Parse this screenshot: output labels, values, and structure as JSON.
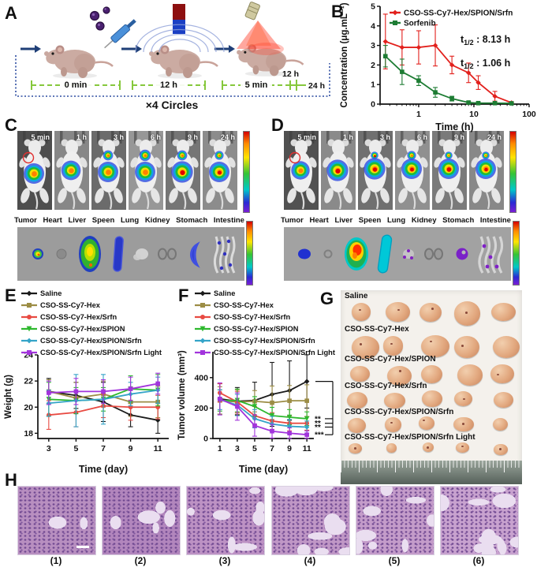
{
  "panels": {
    "A": {
      "label": "A",
      "timeline_segments": [
        "0 min",
        "12 h",
        "5 min"
      ],
      "tail_time_upper": "12 h",
      "tail_time_end": "24 h",
      "cycle_label": "×4 Circles",
      "step_icons": [
        "nanoparticle-injection",
        "magnet-field",
        "nir-light"
      ]
    },
    "B": {
      "label": "B"
    },
    "C": {
      "label": "C",
      "time_labels": [
        "5 min",
        "1 h",
        "3 h",
        "6 h",
        "9 h",
        "24 h"
      ],
      "organ_labels": [
        "Tumor",
        "Heart",
        "Liver",
        "Speen",
        "Lung",
        "Kidney",
        "Stomach",
        "Intestine"
      ]
    },
    "D": {
      "label": "D",
      "time_labels": [
        "5 min",
        "1 h",
        "3 h",
        "6 h",
        "9 h",
        "24 h"
      ],
      "organ_labels": [
        "Tumor",
        "Heart",
        "Liver",
        "Speen",
        "Lung",
        "Kidney",
        "Stomach",
        "Intestine"
      ]
    },
    "E": {
      "label": "E"
    },
    "F": {
      "label": "F"
    },
    "G": {
      "label": "G",
      "group_labels": [
        "Saline",
        "CSO-SS-Cy7-Hex",
        "CSO-SS-Cy7-Hex/SPION",
        "CSO-SS-Cy7-Hex/Srfn",
        "CSO-SS-Cy7-Hex/SPION/Srfn",
        "CSO-SS-Cy7-Hex/SPION/Srfn Light"
      ],
      "tumors_per_row": 5
    },
    "H": {
      "label": "H",
      "captions": [
        "(1)",
        "(2)",
        "(3)",
        "(4)",
        "(5)",
        "(6)"
      ]
    }
  },
  "chart_data": [
    {
      "panel": "B",
      "type": "line",
      "xscale": "log",
      "xlabel": "Time (h)",
      "ylabel": "Concentration (μg.mL⁻¹)",
      "xlim": [
        0.2,
        100
      ],
      "ylim": [
        0,
        5
      ],
      "xticks": [
        1,
        10,
        100
      ],
      "yticks": [
        0,
        1,
        2,
        3,
        4,
        5
      ],
      "legend_position": "inside-top-left",
      "x": [
        0.25,
        0.5,
        1,
        2,
        4,
        8,
        12,
        24,
        48
      ],
      "series": [
        {
          "name": "CSO-SS-Cy7-Hex/SPION/Srfn",
          "color": "#e2201c",
          "values": [
            3.2,
            2.9,
            2.9,
            3.0,
            2.0,
            1.6,
            1.1,
            0.4,
            0.07
          ],
          "errors": [
            1.4,
            0.9,
            0.85,
            1.05,
            0.45,
            0.5,
            0.35,
            0.25,
            0.05
          ]
        },
        {
          "name": "Sorfenib",
          "color": "#1d7c33",
          "values": [
            2.45,
            1.65,
            1.2,
            0.6,
            0.28,
            0.08,
            0.05,
            0.05,
            0.04
          ],
          "errors": [
            0.55,
            0.65,
            0.25,
            0.25,
            0.12,
            0.05,
            0.04,
            0.03,
            0.02
          ]
        }
      ],
      "annotations": [
        "t1/2 : 8.13 h",
        "t1/2 : 1.06 h"
      ]
    },
    {
      "panel": "E",
      "type": "line",
      "xlabel": "Time (day)",
      "ylabel": "Weight (g)",
      "ylim": [
        17.6,
        24
      ],
      "xticks": [
        3,
        5,
        7,
        9,
        11
      ],
      "yticks": [
        18,
        20,
        22,
        24
      ],
      "legend_position": "above",
      "x": [
        3,
        5,
        7,
        9,
        11
      ],
      "series": [
        {
          "name": "Saline",
          "color": "#1b1b1b",
          "values": [
            21.2,
            20.9,
            20.4,
            19.4,
            19.0
          ],
          "errors": [
            1.0,
            1.0,
            1.5,
            0.9,
            1.0
          ]
        },
        {
          "name": "CSO-SS-Cy7-Hex",
          "color": "#9c8d45",
          "values": [
            21.2,
            20.7,
            21.0,
            20.4,
            20.4
          ],
          "errors": [
            0.9,
            1.2,
            1.0,
            1.1,
            1.2
          ]
        },
        {
          "name": "CSO-SS-Cy7-Hex/Srfn",
          "color": "#e84a42",
          "values": [
            19.4,
            19.6,
            20.1,
            20.0,
            20.0
          ],
          "errors": [
            1.1,
            1.1,
            0.9,
            1.0,
            0.9
          ]
        },
        {
          "name": "CSO-SS-Cy7-Hex/SPION",
          "color": "#2eb82e",
          "values": [
            20.6,
            20.5,
            20.6,
            21.4,
            21.3
          ],
          "errors": [
            1.3,
            1.0,
            0.9,
            1.0,
            1.2
          ]
        },
        {
          "name": "CSO-SS-Cy7-Hex/SPION/Srfn",
          "color": "#35a4c8",
          "values": [
            20.3,
            20.5,
            20.6,
            21.0,
            21.3
          ],
          "errors": [
            1.0,
            2.0,
            1.9,
            0.9,
            1.0
          ]
        },
        {
          "name": "CSO-SS-Cy7-Hex/SPION/Srfn Light",
          "color": "#a234dc",
          "values": [
            21.1,
            21.2,
            21.2,
            21.4,
            21.8
          ],
          "errors": [
            0.9,
            1.0,
            0.9,
            0.9,
            0.8
          ]
        }
      ]
    },
    {
      "panel": "F",
      "type": "line",
      "xlabel": "Time (day)",
      "ylabel": "Tumor volume (mm³)",
      "ylim": [
        0,
        570
      ],
      "xticks": [
        1,
        3,
        5,
        7,
        9,
        11
      ],
      "yticks": [
        0,
        200,
        400
      ],
      "legend_position": "above",
      "x": [
        1,
        3,
        5,
        7,
        9,
        11
      ],
      "series": [
        {
          "name": "Saline",
          "color": "#1b1b1b",
          "values": [
            260,
            245,
            250,
            290,
            315,
            375
          ],
          "errors": [
            100,
            90,
            120,
            210,
            195,
            175
          ]
        },
        {
          "name": "CSO-SS-Cy7-Hex",
          "color": "#9c8d45",
          "values": [
            250,
            240,
            245,
            235,
            248,
            248
          ],
          "errors": [
            90,
            80,
            70,
            110,
            100,
            105
          ]
        },
        {
          "name": "CSO-SS-Cy7-Hex/Srfn",
          "color": "#e84a42",
          "values": [
            300,
            240,
            150,
            115,
            100,
            100
          ],
          "errors": [
            60,
            70,
            60,
            55,
            50,
            45
          ]
        },
        {
          "name": "CSO-SS-Cy7-Hex/SPION",
          "color": "#2eb82e",
          "values": [
            250,
            250,
            210,
            150,
            140,
            130
          ],
          "errors": [
            70,
            75,
            65,
            55,
            50,
            45
          ]
        },
        {
          "name": "CSO-SS-Cy7-Hex/SPION/Srfn",
          "color": "#35a4c8",
          "values": [
            255,
            220,
            130,
            95,
            80,
            75
          ],
          "errors": [
            65,
            70,
            60,
            50,
            45,
            40
          ]
        },
        {
          "name": "CSO-SS-Cy7-Hex/SPION/Srfn Light",
          "color": "#a234dc",
          "values": [
            260,
            210,
            85,
            48,
            35,
            25
          ],
          "errors": [
            105,
            90,
            70,
            45,
            35,
            25
          ]
        }
      ],
      "significance": [
        {
          "label": "**",
          "series": "CSO-SS-Cy7-Hex/SPION"
        },
        {
          "label": "**",
          "series": "CSO-SS-Cy7-Hex/Srfn"
        },
        {
          "label": "**",
          "series": "CSO-SS-Cy7-Hex/SPION/Srfn"
        },
        {
          "label": "***",
          "series": "CSO-SS-Cy7-Hex/SPION/Srfn Light"
        }
      ]
    }
  ]
}
